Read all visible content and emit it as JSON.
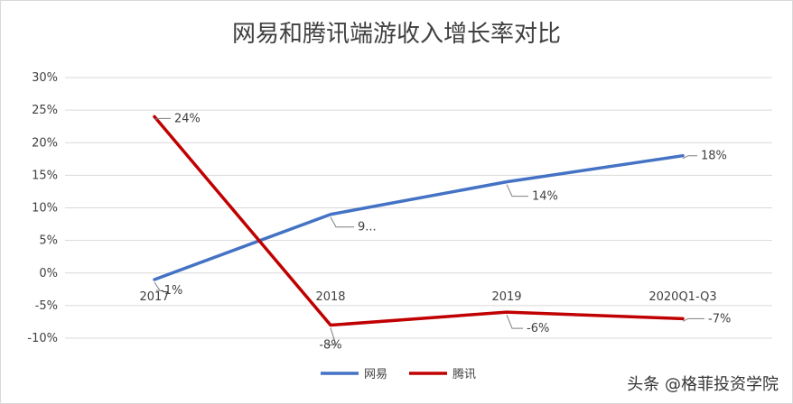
{
  "chart_data": {
    "type": "line",
    "title": "网易和腾讯端游收入增长率对比",
    "categories": [
      "2017",
      "2018",
      "2019",
      "2020Q1-Q3"
    ],
    "ylim": [
      -10,
      30
    ],
    "yticks": [
      -10,
      -5,
      0,
      5,
      10,
      15,
      20,
      25,
      30
    ],
    "ytick_labels": [
      "-10%",
      "-5%",
      "0%",
      "5%",
      "10%",
      "15%",
      "20%",
      "25%",
      "30%"
    ],
    "grid": true,
    "legend_position": "bottom",
    "series": [
      {
        "name": "网易",
        "color": "#4472c4",
        "values": [
          -1,
          9,
          14,
          18
        ],
        "labels": [
          "-1%",
          "9...",
          "14%",
          "18%"
        ]
      },
      {
        "name": "腾讯",
        "color": "#c00000",
        "values": [
          24,
          -8,
          -6,
          -7
        ],
        "labels": [
          "24%",
          "-8%",
          "-6%",
          "-7%"
        ]
      }
    ]
  },
  "watermark": "头条 @格菲投资学院"
}
